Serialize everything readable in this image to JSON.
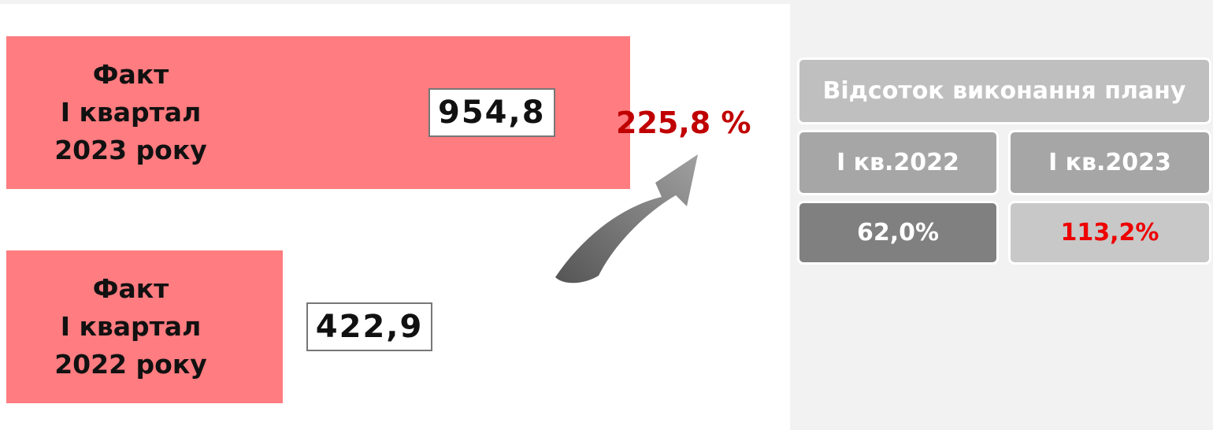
{
  "chart_data": {
    "type": "bar",
    "orientation": "horizontal",
    "color": "#ff7c80",
    "categories": [
      "Факт\nІ квартал\n2023 року",
      "Факт\nІ квартал\n2022 року"
    ],
    "values": [
      954.8,
      422.9
    ],
    "value_labels": [
      "954,8",
      "422,9"
    ],
    "annotation": "225,8 %"
  },
  "table": {
    "header": "Відсоток виконання плану",
    "columns": [
      "І кв.2022",
      "І кв.2023"
    ],
    "values": [
      "62,0%",
      "113,2%"
    ]
  }
}
